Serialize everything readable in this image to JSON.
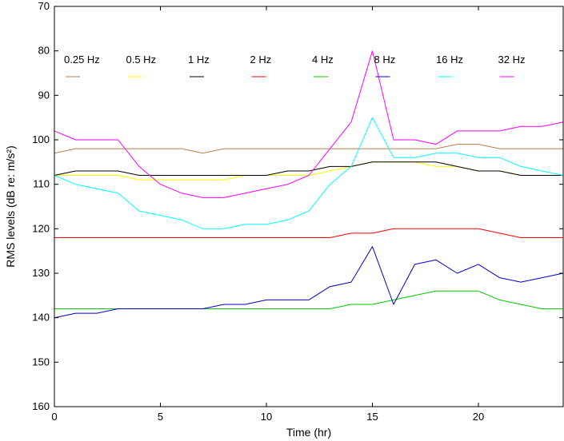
{
  "chart_data": {
    "type": "line",
    "xlabel": "Time (hr)",
    "ylabel": "RMS levels (dB re: m/s²)",
    "xlim": [
      0,
      24
    ],
    "ylim": [
      70,
      160
    ],
    "y_reversed": true,
    "grid": false,
    "legend_position": "top",
    "x_ticks": [
      0,
      5,
      10,
      15,
      20
    ],
    "y_ticks": [
      70,
      80,
      90,
      100,
      110,
      120,
      130,
      140,
      150,
      160
    ],
    "x": [
      0,
      1,
      2,
      3,
      4,
      5,
      6,
      7,
      8,
      9,
      10,
      11,
      12,
      13,
      14,
      15,
      16,
      17,
      18,
      19,
      20,
      21,
      22,
      23,
      24
    ],
    "series": [
      {
        "name": "0.25 Hz",
        "color": "#b87f4a",
        "values": [
          103,
          102,
          102,
          102,
          102,
          102,
          102,
          103,
          102,
          102,
          102,
          102,
          102,
          102,
          102,
          102,
          102,
          102,
          102,
          101,
          101,
          102,
          102,
          102,
          102
        ]
      },
      {
        "name": "0.5 Hz",
        "color": "#ffff00",
        "values": [
          108,
          108,
          108,
          108,
          109,
          109,
          109,
          109,
          109,
          108,
          108,
          108,
          108,
          107,
          106,
          105,
          105,
          105,
          106,
          106,
          107,
          107,
          108,
          108,
          108
        ]
      },
      {
        "name": "1 Hz",
        "color": "#000000",
        "values": [
          108,
          107,
          107,
          107,
          108,
          108,
          108,
          108,
          108,
          108,
          108,
          107,
          107,
          106,
          106,
          105,
          105,
          105,
          105,
          106,
          107,
          107,
          108,
          108,
          108
        ]
      },
      {
        "name": "2 Hz",
        "color": "#ff0000",
        "values": [
          122,
          122,
          122,
          122,
          122,
          122,
          122,
          122,
          122,
          122,
          122,
          122,
          122,
          122,
          121,
          121,
          120,
          120,
          120,
          120,
          120,
          121,
          122,
          122,
          122
        ]
      },
      {
        "name": "4 Hz",
        "color": "#00cc00",
        "values": [
          138,
          138,
          138,
          138,
          138,
          138,
          138,
          138,
          138,
          138,
          138,
          138,
          138,
          138,
          137,
          137,
          136,
          135,
          134,
          134,
          134,
          136,
          137,
          138,
          138
        ]
      },
      {
        "name": "8 Hz",
        "color": "#0000cc",
        "values": [
          140,
          139,
          139,
          138,
          138,
          138,
          138,
          138,
          137,
          137,
          136,
          136,
          136,
          133,
          132,
          124,
          137,
          128,
          127,
          130,
          128,
          131,
          132,
          131,
          130
        ]
      },
      {
        "name": "16 Hz",
        "color": "#00ffff",
        "values": [
          108,
          110,
          111,
          112,
          116,
          117,
          118,
          120,
          120,
          119,
          119,
          118,
          116,
          110,
          106,
          95,
          104,
          104,
          103,
          103,
          104,
          104,
          106,
          107,
          108
        ]
      },
      {
        "name": "32 Hz",
        "color": "#ff00ff",
        "values": [
          98,
          100,
          100,
          100,
          106,
          110,
          112,
          113,
          113,
          112,
          111,
          110,
          108,
          102,
          96,
          80,
          100,
          100,
          101,
          98,
          98,
          98,
          97,
          97,
          96
        ]
      }
    ]
  }
}
